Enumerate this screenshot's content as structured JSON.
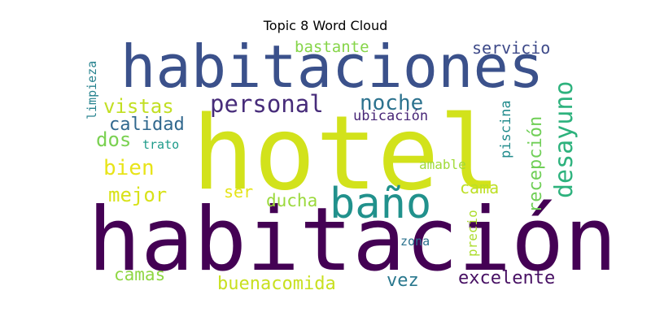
{
  "chart_data": {
    "type": "wordcloud",
    "title": "Topic 8 Word Cloud",
    "words": [
      {
        "text": "hotel",
        "color": "#d2e21b"
      },
      {
        "text": "habitación",
        "color": "#440154"
      },
      {
        "text": "habitaciones",
        "color": "#3b518b"
      },
      {
        "text": "baño",
        "color": "#21918c"
      },
      {
        "text": "personal",
        "color": "#472c7a"
      },
      {
        "text": "desayuno",
        "color": "#2db27d"
      },
      {
        "text": "noche",
        "color": "#2c728e"
      },
      {
        "text": "vistas",
        "color": "#c2df23"
      },
      {
        "text": "calidad",
        "color": "#31688e"
      },
      {
        "text": "dos",
        "color": "#7ad151"
      },
      {
        "text": "bien",
        "color": "#e8e419"
      },
      {
        "text": "mejor",
        "color": "#d8e219"
      },
      {
        "text": "servicio",
        "color": "#3e4a89"
      },
      {
        "text": "bastante",
        "color": "#86d549"
      },
      {
        "text": "ubicación",
        "color": "#482677"
      },
      {
        "text": "recepción",
        "color": "#70cf57"
      },
      {
        "text": "piscina",
        "color": "#228c8d"
      },
      {
        "text": "limpieza",
        "color": "#26828e"
      },
      {
        "text": "trato",
        "color": "#1e9b8a"
      },
      {
        "text": "amable",
        "color": "#a0da39"
      },
      {
        "text": "cama",
        "color": "#bddf26"
      },
      {
        "text": "ser",
        "color": "#e5e419"
      },
      {
        "text": "ducha",
        "color": "#9bd93c"
      },
      {
        "text": "precio",
        "color": "#addc30"
      },
      {
        "text": "zona",
        "color": "#2c728e"
      },
      {
        "text": "camas",
        "color": "#8fd744"
      },
      {
        "text": "buenacomida",
        "color": "#c8e020"
      },
      {
        "text": "vez",
        "color": "#2a788e"
      },
      {
        "text": "excelente",
        "color": "#471063"
      }
    ]
  }
}
